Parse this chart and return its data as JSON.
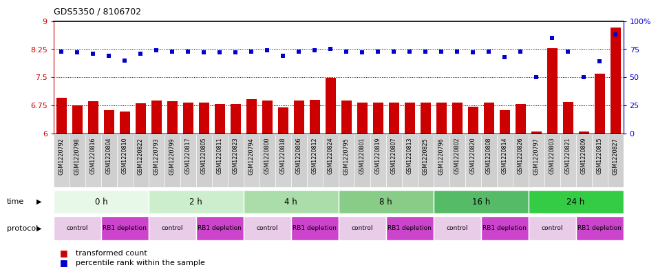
{
  "title": "GDS5350 / 8106702",
  "samples": [
    "GSM1220792",
    "GSM1220798",
    "GSM1220816",
    "GSM1220804",
    "GSM1220810",
    "GSM1220822",
    "GSM1220793",
    "GSM1220799",
    "GSM1220817",
    "GSM1220805",
    "GSM1220811",
    "GSM1220823",
    "GSM1220794",
    "GSM1220800",
    "GSM1220818",
    "GSM1220806",
    "GSM1220812",
    "GSM1220824",
    "GSM1220795",
    "GSM1220801",
    "GSM1220819",
    "GSM1220807",
    "GSM1220813",
    "GSM1220825",
    "GSM1220796",
    "GSM1220802",
    "GSM1220820",
    "GSM1220808",
    "GSM1220814",
    "GSM1220826",
    "GSM1220797",
    "GSM1220803",
    "GSM1220821",
    "GSM1220809",
    "GSM1220815",
    "GSM1220827"
  ],
  "bar_values": [
    6.95,
    6.75,
    6.85,
    6.62,
    6.58,
    6.8,
    6.88,
    6.85,
    6.83,
    6.82,
    6.78,
    6.78,
    6.92,
    6.88,
    6.7,
    6.88,
    6.9,
    7.48,
    6.87,
    6.82,
    6.83,
    6.83,
    6.83,
    6.82,
    6.82,
    6.82,
    6.72,
    6.82,
    6.62,
    6.78,
    6.05,
    8.27,
    6.84,
    6.05,
    7.6,
    8.82
  ],
  "scatter_values": [
    73,
    72,
    71,
    69,
    65,
    71,
    74,
    73,
    73,
    72,
    72,
    72,
    73,
    74,
    69,
    73,
    74,
    75,
    73,
    72,
    73,
    73,
    73,
    73,
    73,
    73,
    72,
    73,
    68,
    73,
    50,
    85,
    73,
    50,
    64,
    88
  ],
  "bar_color": "#cc0000",
  "scatter_color": "#0000cc",
  "ylim_left": [
    6.0,
    9.0
  ],
  "ylim_right": [
    0,
    100
  ],
  "yticks_left": [
    6.0,
    6.75,
    7.5,
    8.25,
    9.0
  ],
  "yticks_left_labels": [
    "6",
    "6.75",
    "7.5",
    "8.25",
    "9"
  ],
  "yticks_right": [
    0,
    25,
    50,
    75,
    100
  ],
  "yticks_right_labels": [
    "0",
    "25",
    "50",
    "75",
    "100%"
  ],
  "hlines": [
    6.75,
    7.5,
    8.25
  ],
  "time_groups": [
    {
      "label": "0 h",
      "start": 0,
      "end": 6,
      "color": "#e8f8e8"
    },
    {
      "label": "2 h",
      "start": 6,
      "end": 12,
      "color": "#cceecc"
    },
    {
      "label": "4 h",
      "start": 12,
      "end": 18,
      "color": "#aaddaa"
    },
    {
      "label": "8 h",
      "start": 18,
      "end": 24,
      "color": "#88cc88"
    },
    {
      "label": "16 h",
      "start": 24,
      "end": 30,
      "color": "#66bb66"
    },
    {
      "label": "24 h",
      "start": 30,
      "end": 36,
      "color": "#44cc44"
    }
  ],
  "protocol_groups": [
    {
      "label": "control",
      "start": 0,
      "end": 3,
      "color": "#e8cce8"
    },
    {
      "label": "RB1 depletion",
      "start": 3,
      "end": 6,
      "color": "#cc44cc"
    },
    {
      "label": "control",
      "start": 6,
      "end": 9,
      "color": "#e8cce8"
    },
    {
      "label": "RB1 depletion",
      "start": 9,
      "end": 12,
      "color": "#cc44cc"
    },
    {
      "label": "control",
      "start": 12,
      "end": 15,
      "color": "#e8cce8"
    },
    {
      "label": "RB1 depletion",
      "start": 15,
      "end": 18,
      "color": "#cc44cc"
    },
    {
      "label": "control",
      "start": 18,
      "end": 21,
      "color": "#e8cce8"
    },
    {
      "label": "RB1 depletion",
      "start": 21,
      "end": 24,
      "color": "#cc44cc"
    },
    {
      "label": "control",
      "start": 24,
      "end": 27,
      "color": "#e8cce8"
    },
    {
      "label": "RB1 depletion",
      "start": 27,
      "end": 30,
      "color": "#cc44cc"
    },
    {
      "label": "control",
      "start": 30,
      "end": 33,
      "color": "#e8cce8"
    },
    {
      "label": "RB1 depletion",
      "start": 33,
      "end": 36,
      "color": "#cc44cc"
    }
  ],
  "time_label": "time",
  "protocol_label": "protocol",
  "legend_bar": "transformed count",
  "legend_scatter": "percentile rank within the sample",
  "bg_color": "#ffffff",
  "tick_label_color_left": "#cc0000",
  "tick_label_color_right": "#0000cc",
  "xlabel_bg": "#d8d8d8"
}
